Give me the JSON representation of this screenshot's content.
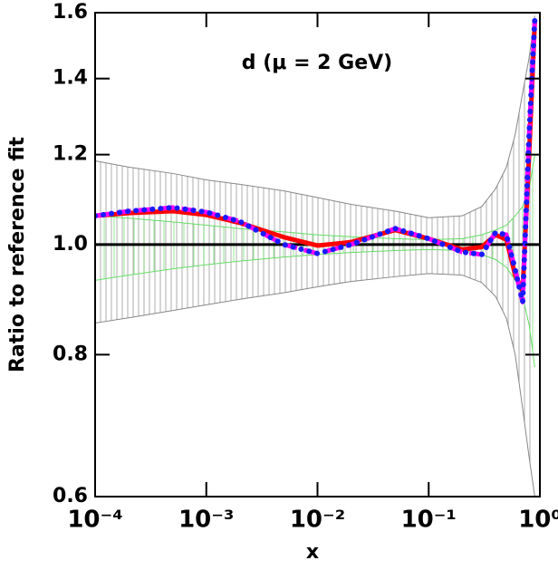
{
  "chart_data": {
    "type": "line",
    "title": "d (μ = 2 GeV)",
    "xlabel": "x",
    "ylabel": "Ratio to reference fit",
    "xscale": "log",
    "yscale": "log",
    "xlim": [
      0.0001,
      1
    ],
    "ylim": [
      0.6,
      1.6
    ],
    "xticks": [
      {
        "value": 0.0001,
        "label": "10⁻⁴"
      },
      {
        "value": 0.001,
        "label": "10⁻³"
      },
      {
        "value": 0.01,
        "label": "10⁻²"
      },
      {
        "value": 0.1,
        "label": "10⁻¹"
      },
      {
        "value": 1,
        "label": "10⁰"
      }
    ],
    "yticks": [
      0.6,
      0.8,
      {
        "value": 1,
        "label": "1.0"
      },
      1.2,
      1.4,
      1.6
    ],
    "reference_line": 1,
    "x": [
      0.0001,
      0.0002,
      0.0005,
      0.001,
      0.002,
      0.005,
      0.01,
      0.02,
      0.05,
      0.1,
      0.2,
      0.3,
      0.4,
      0.5,
      0.6,
      0.7,
      0.8,
      0.9
    ],
    "bands": [
      {
        "color": "#888888",
        "upper": [
          1.185,
          1.17,
          1.155,
          1.14,
          1.13,
          1.115,
          1.1,
          1.085,
          1.07,
          1.056,
          1.06,
          1.08,
          1.12,
          1.17,
          1.25,
          1.36,
          1.46,
          1.59
        ],
        "lower": [
          0.853,
          0.862,
          0.875,
          0.885,
          0.895,
          0.907,
          0.918,
          0.928,
          0.937,
          0.943,
          0.94,
          0.926,
          0.9,
          0.861,
          0.8,
          0.717,
          0.65,
          0.6
        ]
      },
      {
        "color": "#66dd66",
        "upper": [
          1.06,
          1.055,
          1.047,
          1.04,
          1.033,
          1.026,
          1.02,
          1.016,
          1.012,
          1.01,
          1.012,
          1.02,
          1.03,
          1.04,
          1.06,
          1.08,
          1.12,
          1.2
        ],
        "lower": [
          0.93,
          0.94,
          0.952,
          0.96,
          0.967,
          0.975,
          0.98,
          0.984,
          0.988,
          0.99,
          0.988,
          0.98,
          0.97,
          0.955,
          0.93,
          0.9,
          0.85,
          0.78
        ]
      }
    ],
    "series": [
      {
        "color": "#ff0000",
        "style": "solid",
        "values": [
          1.06,
          1.066,
          1.07,
          1.062,
          1.045,
          1.015,
          0.998,
          1.005,
          1.03,
          1.012,
          0.99,
          0.995,
          1.02,
          1.01,
          0.94,
          0.91,
          1.2,
          1.57
        ]
      },
      {
        "color": "#ff00ff",
        "style": "dashed",
        "values": [
          1.06,
          1.07,
          1.078,
          1.068,
          1.048,
          1.0,
          0.982,
          1.0,
          1.033,
          1.012,
          0.985,
          0.98,
          1.025,
          1.02,
          0.95,
          0.89,
          1.25,
          1.58
        ]
      },
      {
        "color": "#1a1aff",
        "style": "dotted",
        "values": [
          1.06,
          1.07,
          1.078,
          1.068,
          1.048,
          1.0,
          0.982,
          1.0,
          1.033,
          1.012,
          0.985,
          0.98,
          1.025,
          1.02,
          0.95,
          0.89,
          1.25,
          1.58
        ]
      }
    ]
  }
}
